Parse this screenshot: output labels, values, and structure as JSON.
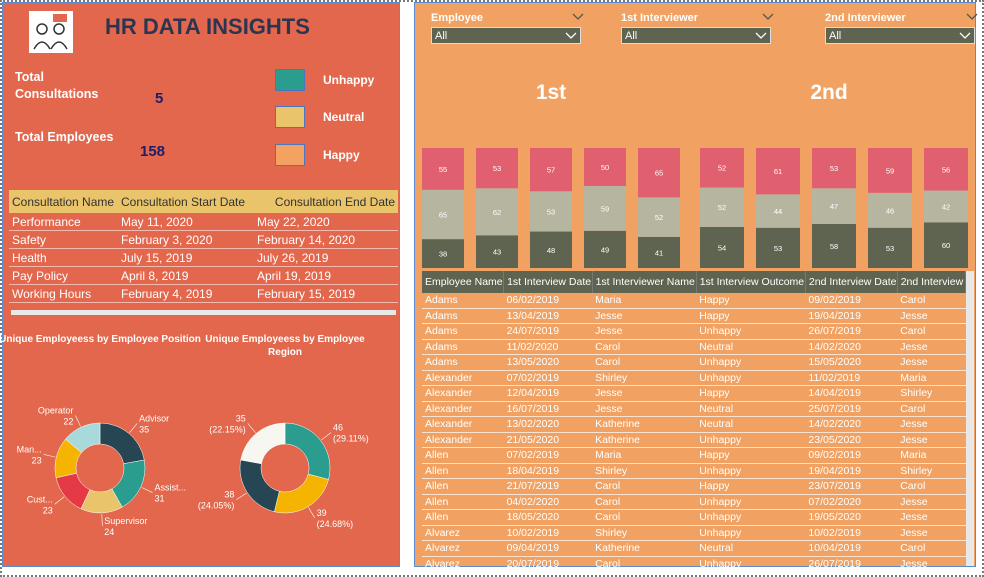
{
  "header": {
    "title": "HR DATA INSIGHTS"
  },
  "kpis": [
    {
      "label": "Total Consultations",
      "value": 5
    },
    {
      "label": "Total Employees",
      "value": 158
    }
  ],
  "legend": [
    {
      "label": "Unhappy",
      "color": "#2a9d8f"
    },
    {
      "label": "Neutral",
      "color": "#e9c46a"
    },
    {
      "label": "Happy",
      "color": "#f4a261"
    }
  ],
  "consultation_table": {
    "columns": [
      "Consultation Name",
      "Consultation Start Date",
      "Consultation End Date"
    ],
    "rows": [
      [
        "Performance",
        "May 11, 2020",
        "May 22, 2020"
      ],
      [
        "Safety",
        "February 3, 2020",
        "February 14, 2020"
      ],
      [
        "Health",
        "July 15, 2019",
        "July 26, 2019"
      ],
      [
        "Pay Policy",
        "April 8, 2019",
        "April 19, 2019"
      ],
      [
        "Working Hours",
        "February 4, 2019",
        "February 15, 2019"
      ]
    ]
  },
  "filters": [
    {
      "label": "Employee",
      "selection": "All"
    },
    {
      "label": "1st Interviewer",
      "selection": "All"
    },
    {
      "label": "2nd Interviewer",
      "selection": "All"
    }
  ],
  "chart_data": [
    {
      "type": "donut",
      "title": "Unique Employeess by Employee Position",
      "categories": [
        "Advisor",
        "Assist...",
        "Supervisor",
        "Cust...",
        "Man...",
        "Operator"
      ],
      "values": [
        35,
        31,
        24,
        23,
        23,
        22
      ],
      "colors": [
        "#264653",
        "#2a9d8f",
        "#e9c46a",
        "#e63946",
        "#f4b400",
        "#a8dadc"
      ]
    },
    {
      "type": "donut",
      "title": "Unique Employeess by Employee Region",
      "values": [
        46,
        39,
        38,
        35
      ],
      "percent_labels": [
        "(29.11%)",
        "(24.68%)",
        "(24.05%)",
        "(22.15%)"
      ],
      "colors": [
        "#2a9d8f",
        "#f4b400",
        "#264653",
        "#f7f7f2"
      ]
    },
    {
      "type": "stacked-bar",
      "title": "1st",
      "series": [
        {
          "color": "#5e6450",
          "values": [
            38,
            43,
            48,
            49,
            41
          ]
        },
        {
          "color": "#b6b5a0",
          "values": [
            65,
            62,
            53,
            59,
            52
          ]
        },
        {
          "color": "#e0606f",
          "values": [
            55,
            53,
            57,
            50,
            65
          ]
        }
      ]
    },
    {
      "type": "stacked-bar",
      "title": "2nd",
      "series": [
        {
          "color": "#5e6450",
          "values": [
            54,
            53,
            58,
            53,
            60
          ]
        },
        {
          "color": "#b6b5a0",
          "values": [
            52,
            44,
            47,
            46,
            42
          ]
        },
        {
          "color": "#e0606f",
          "values": [
            52,
            61,
            53,
            59,
            56
          ]
        }
      ]
    }
  ],
  "employee_table": {
    "columns": [
      "Employee Name",
      "1st Interview Date",
      "1st Interviewer Name",
      "1st Interview Outcome",
      "2nd Interview Date",
      "2nd Interview"
    ],
    "rows": [
      [
        "Adams",
        "06/02/2019",
        "Maria",
        "Happy",
        "09/02/2019",
        "Carol"
      ],
      [
        "Adams",
        "13/04/2019",
        "Jesse",
        "Happy",
        "19/04/2019",
        "Jesse"
      ],
      [
        "Adams",
        "24/07/2019",
        "Jesse",
        "Unhappy",
        "26/07/2019",
        "Carol"
      ],
      [
        "Adams",
        "11/02/2020",
        "Carol",
        "Neutral",
        "14/02/2020",
        "Jesse"
      ],
      [
        "Adams",
        "13/05/2020",
        "Carol",
        "Unhappy",
        "15/05/2020",
        "Jesse"
      ],
      [
        "Alexander",
        "07/02/2019",
        "Shirley",
        "Unhappy",
        "11/02/2019",
        "Maria"
      ],
      [
        "Alexander",
        "12/04/2019",
        "Jesse",
        "Happy",
        "14/04/2019",
        "Shirley"
      ],
      [
        "Alexander",
        "16/07/2019",
        "Jesse",
        "Neutral",
        "25/07/2019",
        "Carol"
      ],
      [
        "Alexander",
        "13/02/2020",
        "Katherine",
        "Neutral",
        "14/02/2020",
        "Jesse"
      ],
      [
        "Alexander",
        "21/05/2020",
        "Katherine",
        "Unhappy",
        "23/05/2020",
        "Jesse"
      ],
      [
        "Allen",
        "07/02/2019",
        "Maria",
        "Happy",
        "09/02/2019",
        "Maria"
      ],
      [
        "Allen",
        "18/04/2019",
        "Shirley",
        "Unhappy",
        "19/04/2019",
        "Shirley"
      ],
      [
        "Allen",
        "21/07/2019",
        "Carol",
        "Happy",
        "23/07/2019",
        "Carol"
      ],
      [
        "Allen",
        "04/02/2020",
        "Carol",
        "Unhappy",
        "07/02/2020",
        "Jesse"
      ],
      [
        "Allen",
        "18/05/2020",
        "Carol",
        "Unhappy",
        "19/05/2020",
        "Jesse"
      ],
      [
        "Alvarez",
        "10/02/2019",
        "Shirley",
        "Unhappy",
        "10/02/2019",
        "Jesse"
      ],
      [
        "Alvarez",
        "09/04/2019",
        "Katherine",
        "Neutral",
        "10/04/2019",
        "Carol"
      ],
      [
        "Alvarez",
        "20/07/2019",
        "Carol",
        "Unhappy",
        "26/07/2019",
        "Jesse"
      ]
    ]
  }
}
